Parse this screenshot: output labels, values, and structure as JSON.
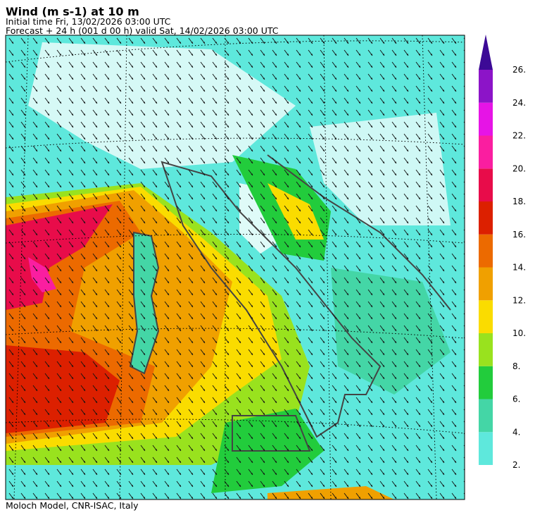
{
  "header": {
    "title": "Wind (m s-1) at 10 m",
    "initial_time": "Initial time  Fri, 13/02/2026  03:00 UTC",
    "forecast": "Forecast +  24 h  (001 d 00 h)  valid Sat, 14/02/2026 03:00 UTC"
  },
  "colorbar": {
    "ticks": [
      {
        "value": 2,
        "label": "2."
      },
      {
        "value": 4,
        "label": "4."
      },
      {
        "value": 6,
        "label": "6."
      },
      {
        "value": 8,
        "label": "8."
      },
      {
        "value": 10,
        "label": "10."
      },
      {
        "value": 12,
        "label": "12."
      },
      {
        "value": 14,
        "label": "14."
      },
      {
        "value": 16,
        "label": "16."
      },
      {
        "value": 18,
        "label": "18."
      },
      {
        "value": 20,
        "label": "20."
      },
      {
        "value": 22,
        "label": "22."
      },
      {
        "value": 24,
        "label": "24."
      },
      {
        "value": 26,
        "label": "26."
      }
    ],
    "colors": [
      "#5ee8dc",
      "#44d6a6",
      "#22cc3c",
      "#99e21e",
      "#fadc00",
      "#f0a000",
      "#ec6a00",
      "#dc2000",
      "#e80c4a",
      "#fa1ea0",
      "#e614e6",
      "#8c14c8"
    ],
    "extend_color": "#3c0a96"
  },
  "footer": "Moloch Model, CNR-ISAC, Italy"
}
